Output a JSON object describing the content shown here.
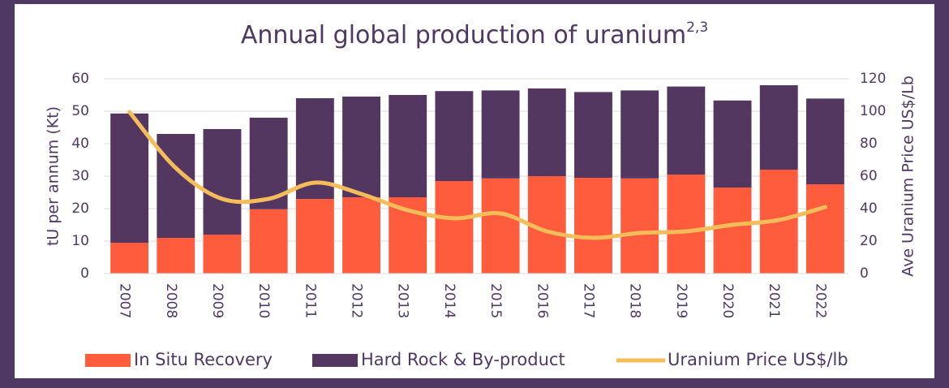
{
  "chart_data": {
    "type": "bar",
    "stacked": true,
    "title": "Annual global production of uranium",
    "title_superscript": "2,3",
    "y_label": "tU per annum (Kt)",
    "y2_label": "Ave Uranium Price US$/Lb",
    "categories": [
      "2007",
      "2008",
      "2009",
      "2010",
      "2011",
      "2012",
      "2013",
      "2014",
      "2015",
      "2016",
      "2017",
      "2018",
      "2019",
      "2020",
      "2021",
      "2022"
    ],
    "series": [
      {
        "name": "In Situ Recovery",
        "color": "#ff5c3e",
        "values": [
          9.5,
          11,
          12,
          19.8,
          23,
          23.5,
          23.5,
          28.5,
          29.3,
          30,
          29.5,
          29.3,
          30.5,
          26.5,
          32,
          27.5
        ]
      },
      {
        "name": "Hard Rock & By-product",
        "color": "#533761",
        "values": [
          39.8,
          32,
          32.5,
          28.2,
          31,
          31,
          31.5,
          27.7,
          27.1,
          27,
          26.4,
          27.1,
          27.1,
          26.8,
          26,
          26.4
        ]
      },
      {
        "name": "Uranium Price US$/lb",
        "type": "line",
        "axis": "y2",
        "color": "#f5bd5a",
        "values": [
          99.5,
          65,
          46,
          46,
          56,
          49,
          39,
          34,
          37,
          26,
          22,
          25,
          26,
          30,
          33,
          41
        ]
      }
    ],
    "ylim": [
      0,
      60
    ],
    "yticks": [
      0,
      10,
      20,
      30,
      40,
      50,
      60
    ],
    "y2lim": [
      0,
      120
    ],
    "y2ticks": [
      0,
      20,
      40,
      60,
      80,
      100,
      120
    ],
    "grid": true,
    "legend": "bottom"
  }
}
